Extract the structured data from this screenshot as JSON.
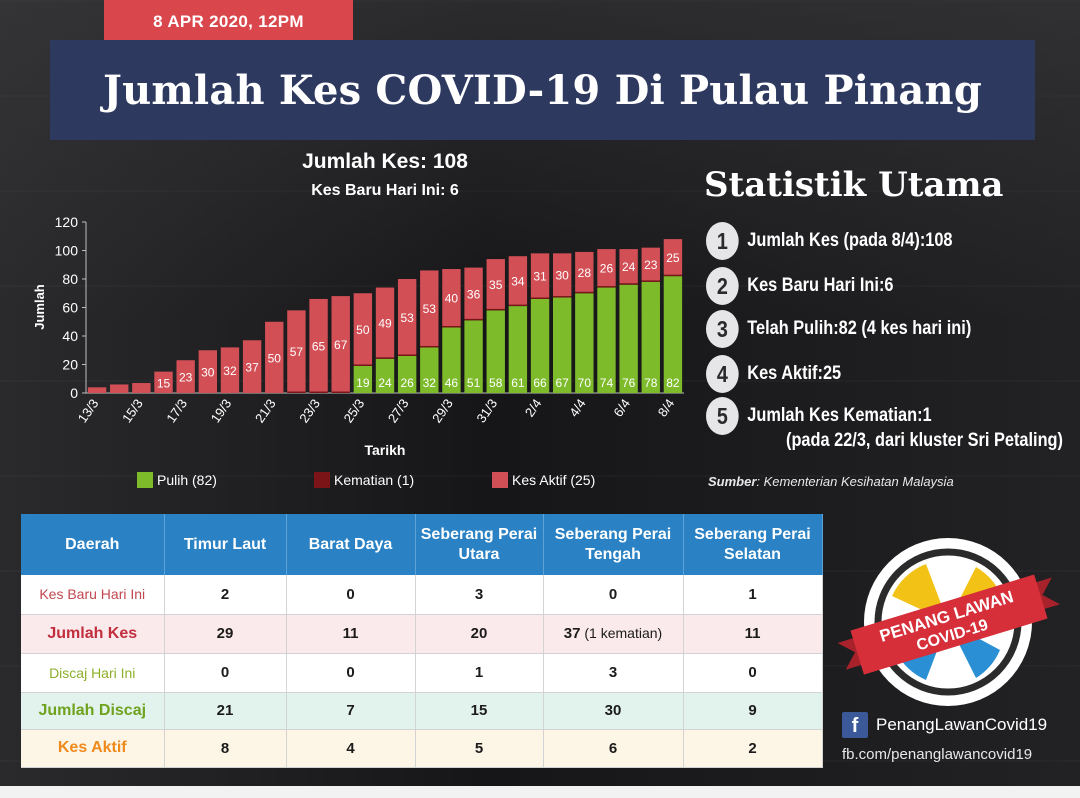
{
  "header": {
    "date": "8 APR 2020, 12PM",
    "title": "Jumlah Kes COVID-19 Di Pulau Pinang"
  },
  "chart_head": {
    "total": "Jumlah Kes: 108",
    "new_today": "Kes Baru Hari Ini: 6"
  },
  "chart_data": {
    "type": "bar",
    "stacked": true,
    "xlabel": "Tarikh",
    "ylabel": "Jumlah",
    "ylim": [
      0,
      120
    ],
    "yticks": [
      0,
      20,
      40,
      60,
      80,
      100,
      120
    ],
    "categories": [
      "13/3",
      "14/3",
      "15/3",
      "16/3",
      "17/3",
      "18/3",
      "19/3",
      "20/3",
      "21/3",
      "22/3",
      "23/3",
      "24/3",
      "25/3",
      "26/3",
      "27/3",
      "28/3",
      "29/3",
      "30/3",
      "31/3",
      "1/4",
      "2/4",
      "3/4",
      "4/4",
      "5/4",
      "6/4",
      "7/4",
      "8/4"
    ],
    "xtick_labels": [
      "13/3",
      "",
      "15/3",
      "",
      "17/3",
      "",
      "19/3",
      "",
      "21/3",
      "",
      "23/3",
      "",
      "25/3",
      "",
      "27/3",
      "",
      "29/3",
      "",
      "31/3",
      "",
      "2/4",
      "",
      "4/4",
      "",
      "6/4",
      "",
      "8/4"
    ],
    "series": [
      {
        "name": "Pulih (82)",
        "color": "#7dbb2b",
        "values": [
          0,
          0,
          0,
          0,
          0,
          0,
          0,
          0,
          0,
          0,
          0,
          0,
          19,
          24,
          26,
          32,
          46,
          51,
          58,
          61,
          66,
          67,
          70,
          74,
          76,
          78,
          82
        ],
        "labels": [
          "",
          "",
          "",
          "",
          "",
          "",
          "",
          "",
          "",
          "",
          "",
          "",
          "19",
          "24",
          "26",
          "32",
          "46",
          "51",
          "58",
          "61",
          "66",
          "67",
          "70",
          "74",
          "76",
          "78",
          "82"
        ]
      },
      {
        "name": "Kematian (1)",
        "color": "#7a1417",
        "values": [
          0,
          0,
          0,
          0,
          0,
          0,
          0,
          0,
          0,
          1,
          1,
          1,
          1,
          1,
          1,
          1,
          1,
          1,
          1,
          1,
          1,
          1,
          1,
          1,
          1,
          1,
          1
        ],
        "labels": [
          "",
          "",
          "",
          "",
          "",
          "",
          "",
          "",
          "",
          "",
          "",
          "",
          "",
          "",
          "",
          "",
          "",
          "",
          "",
          "",
          "",
          "",
          "",
          "",
          "",
          "",
          ""
        ]
      },
      {
        "name": "Kes Aktif (25)",
        "color": "#d24f56",
        "values": [
          4,
          6,
          7,
          15,
          23,
          30,
          32,
          37,
          50,
          57,
          65,
          67,
          50,
          49,
          53,
          53,
          40,
          36,
          35,
          34,
          31,
          30,
          28,
          26,
          24,
          23,
          25
        ],
        "labels": [
          "",
          "",
          "",
          "15",
          "23",
          "30",
          "32",
          "37",
          "50",
          "57",
          "65",
          "67",
          "50",
          "49",
          "53",
          "53",
          "40",
          "36",
          "35",
          "34",
          "31",
          "30",
          "28",
          "26",
          "24",
          "23",
          "25"
        ]
      }
    ]
  },
  "stats": {
    "title": "Statistik Utama",
    "items": [
      {
        "num": "1",
        "label": "Jumlah Kes (pada 8/4): ",
        "value": "108"
      },
      {
        "num": "2",
        "label": "Kes Baru Hari Ini: ",
        "value": "6"
      },
      {
        "num": "3",
        "label": "Telah Pulih: ",
        "value": "82 (4 kes hari ini)"
      },
      {
        "num": "4",
        "label": "Kes Aktif: ",
        "value": "25"
      },
      {
        "num": "5",
        "label": "Jumlah Kes Kematian: ",
        "value": "1"
      }
    ],
    "item5_sub": "(pada 22/3, dari kluster Sri Petaling)",
    "source_label": "Sumber",
    "source_text": ": Kementerian Kesihatan Malaysia"
  },
  "table": {
    "headers": [
      "Daerah",
      "Timur Laut",
      "Barat Daya",
      "Seberang Perai Utara",
      "Seberang Perai Tengah",
      "Seberang Perai Selatan"
    ],
    "rows": [
      {
        "label": "Kes Baru Hari Ini",
        "cells": [
          "2",
          "0",
          "3",
          "0",
          "1"
        ]
      },
      {
        "label": "Jumlah Kes",
        "cells": [
          "29",
          "11",
          "20",
          "37",
          "11"
        ],
        "note": " (1 kematian)"
      },
      {
        "label": "Discaj Hari Ini",
        "cells": [
          "0",
          "0",
          "1",
          "3",
          "0"
        ]
      },
      {
        "label": "Jumlah Discaj",
        "cells": [
          "21",
          "7",
          "15",
          "30",
          "9"
        ]
      },
      {
        "label": "Kes Aktif",
        "cells": [
          "8",
          "4",
          "5",
          "6",
          "2"
        ]
      }
    ]
  },
  "logo": {
    "line1": "PENANG LAWAN",
    "line2": "COVID-19"
  },
  "footer": {
    "fb_icon": "f",
    "fb_name": "PenangLawanCovid19",
    "fb_url": "fb.com/penanglawancovid19"
  }
}
